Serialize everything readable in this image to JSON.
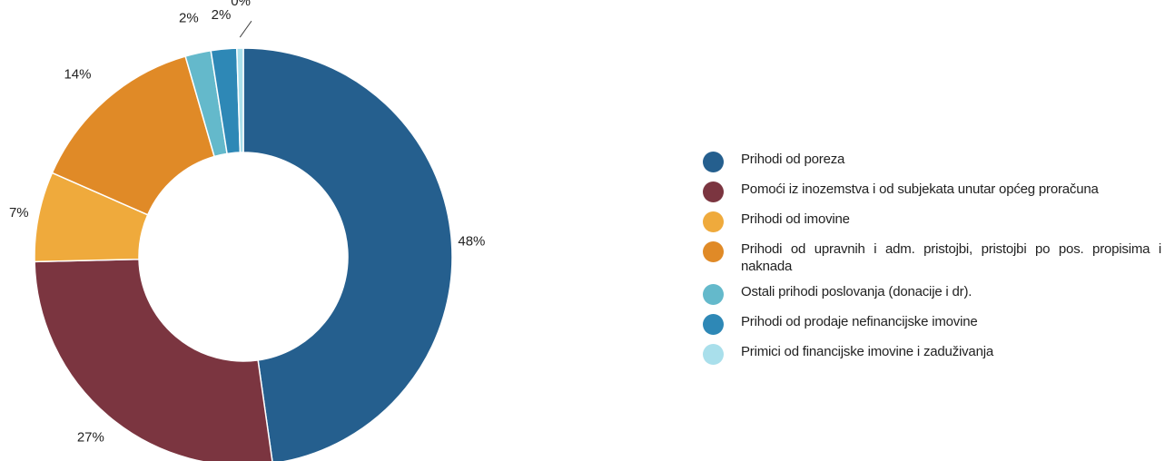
{
  "chart_data": {
    "type": "pie",
    "donut": true,
    "title": "",
    "legend_position": "right",
    "categories": [
      "Prihodi od poreza",
      "Pomoći iz inozemstva i od subjekata unutar općeg proračuna",
      "Prihodi od imovine",
      "Prihodi od upravnih i adm. pristojbi, pristojbi po pos. propisima i naknada",
      "Ostali prihodi poslovanja (donacije i dr).",
      "Prihodi od prodaje nefinancijske imovine",
      "Primici od financijske imovine i zaduživanja"
    ],
    "values": [
      48,
      27,
      7,
      14,
      2,
      2,
      0.5
    ],
    "labels": [
      "48%",
      "27%",
      "7%",
      "14%",
      "2%",
      "2%",
      "0%"
    ],
    "colors": [
      "#255f8e",
      "#7b3540",
      "#efaa3c",
      "#e08a27",
      "#64b9cb",
      "#2e88b6",
      "#a9dfeb"
    ]
  }
}
